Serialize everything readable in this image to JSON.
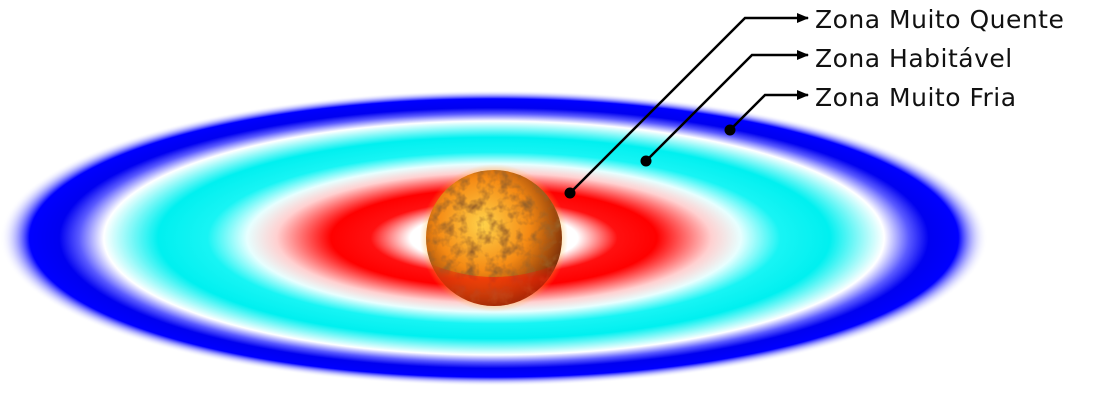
{
  "diagram": {
    "zones": [
      {
        "label": "Zona Muito Quente",
        "color": "#ff0000"
      },
      {
        "label": "Zona Habitável",
        "color": "#00ffff"
      },
      {
        "label": "Zona Muito Fria",
        "color": "#0000ff"
      }
    ],
    "star": {
      "colors": [
        "#ffd24a",
        "#f58a14",
        "#7a2d08"
      ]
    }
  }
}
